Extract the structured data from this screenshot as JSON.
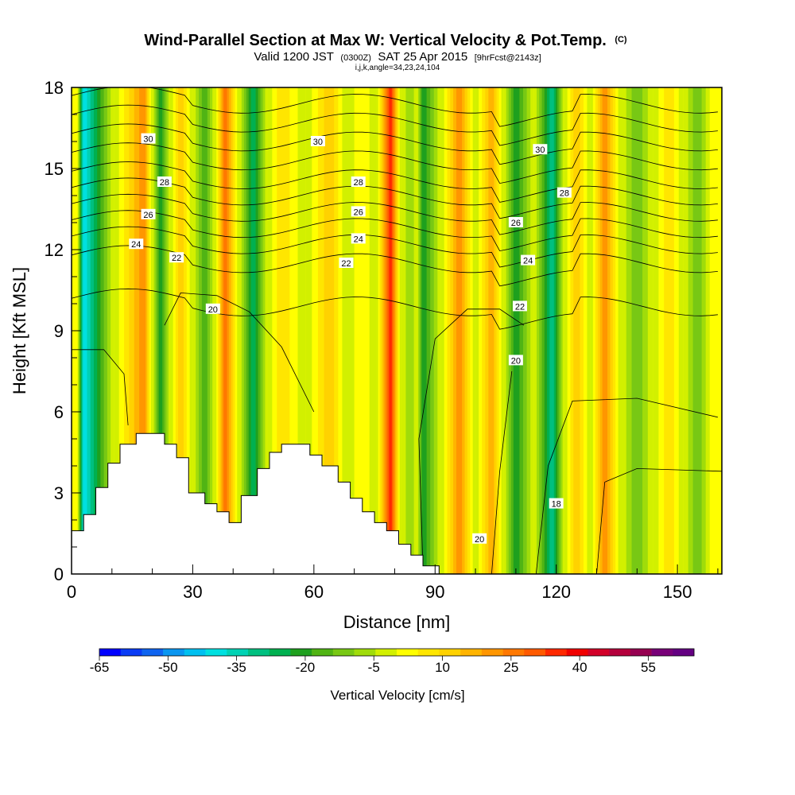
{
  "chart_data": {
    "type": "heatmap",
    "title": "Wind-Parallel Section at Max W: Vertical Velocity & Pot.Temp.",
    "title_mark": "(C)",
    "subtitle_valid": "Valid 1200 JST",
    "subtitle_utc": "(0300Z)",
    "subtitle_date": "SAT 25 Apr 2015",
    "subtitle_fcst": "[9hrFcst@2143z]",
    "subtitle_indices": "i,j,k,angle=34,23,24,104",
    "xlabel": "Distance [nm]",
    "ylabel": "Height [Kft MSL]",
    "xlim": [
      0,
      161
    ],
    "ylim": [
      0,
      18
    ],
    "x_ticks": [
      "0",
      "30",
      "60",
      "90",
      "120",
      "150"
    ],
    "x_tick_values": [
      0,
      30,
      60,
      90,
      120,
      150
    ],
    "y_ticks": [
      "0",
      "3",
      "6",
      "9",
      "12",
      "15",
      "18"
    ],
    "y_tick_values": [
      0,
      3,
      6,
      9,
      12,
      15,
      18
    ],
    "colorbar": {
      "title": "Vertical Velocity [cm/s]",
      "labels": [
        "-65",
        "-50",
        "-35",
        "-20",
        "-5",
        "10",
        "25",
        "40",
        "55"
      ],
      "label_values": [
        -65,
        -50,
        -35,
        -20,
        -5,
        10,
        25,
        40,
        55
      ],
      "min": -65,
      "max": 65,
      "step": 5,
      "colors": [
        "#0000ff",
        "#0a3cf5",
        "#0f64f0",
        "#0a96f0",
        "#00c0f0",
        "#00e0e0",
        "#00d2b4",
        "#00c080",
        "#00b050",
        "#1ea01e",
        "#50b414",
        "#78c814",
        "#a0dc0a",
        "#d2f000",
        "#ffff00",
        "#ffe600",
        "#ffd200",
        "#ffb400",
        "#ff9600",
        "#ff7800",
        "#ff5a00",
        "#ff2800",
        "#f00000",
        "#d20028",
        "#b4003c",
        "#960050",
        "#780078",
        "#640082"
      ]
    },
    "velocity_columns": [
      {
        "x": 3,
        "w": -40
      },
      {
        "x": 18,
        "w": 25
      },
      {
        "x": 22,
        "w": -20
      },
      {
        "x": 27,
        "w": 15
      },
      {
        "x": 33,
        "w": -15
      },
      {
        "x": 38,
        "w": 30
      },
      {
        "x": 45,
        "w": -25
      },
      {
        "x": 52,
        "w": 10
      },
      {
        "x": 64,
        "w": 15
      },
      {
        "x": 72,
        "w": 5
      },
      {
        "x": 79,
        "w": 40
      },
      {
        "x": 84,
        "w": -5
      },
      {
        "x": 87,
        "w": -20
      },
      {
        "x": 96,
        "w": 25
      },
      {
        "x": 104,
        "w": 20
      },
      {
        "x": 110,
        "w": -20
      },
      {
        "x": 119,
        "w": -30
      },
      {
        "x": 125,
        "w": 15
      },
      {
        "x": 132,
        "w": 25
      },
      {
        "x": 140,
        "w": -10
      },
      {
        "x": 148,
        "w": 10
      },
      {
        "x": 155,
        "w": -10
      }
    ],
    "theta_labels": [
      {
        "text": "30",
        "x": 19,
        "y": 16.1
      },
      {
        "text": "30",
        "x": 61,
        "y": 16.0
      },
      {
        "text": "30",
        "x": 116,
        "y": 15.7
      },
      {
        "text": "28",
        "x": 23,
        "y": 14.5
      },
      {
        "text": "28",
        "x": 71,
        "y": 14.5
      },
      {
        "text": "28",
        "x": 122,
        "y": 14.1
      },
      {
        "text": "26",
        "x": 19,
        "y": 13.3
      },
      {
        "text": "26",
        "x": 71,
        "y": 13.4
      },
      {
        "text": "26",
        "x": 110,
        "y": 13.0
      },
      {
        "text": "24",
        "x": 16,
        "y": 12.2
      },
      {
        "text": "24",
        "x": 71,
        "y": 12.4
      },
      {
        "text": "24",
        "x": 113,
        "y": 11.6
      },
      {
        "text": "22",
        "x": 26,
        "y": 11.7
      },
      {
        "text": "22",
        "x": 68,
        "y": 11.5
      },
      {
        "text": "22",
        "x": 111,
        "y": 9.9
      },
      {
        "text": "20",
        "x": 35,
        "y": 9.8
      },
      {
        "text": "20",
        "x": 110,
        "y": 7.9
      },
      {
        "text": "18",
        "x": 120,
        "y": 2.6
      },
      {
        "text": "20",
        "x": 101,
        "y": 1.3
      }
    ],
    "terrain_profile": [
      [
        0,
        1.6
      ],
      [
        3,
        1.6
      ],
      [
        3,
        2.2
      ],
      [
        6,
        2.2
      ],
      [
        6,
        3.2
      ],
      [
        9,
        3.2
      ],
      [
        9,
        4.1
      ],
      [
        12,
        4.1
      ],
      [
        12,
        4.8
      ],
      [
        16,
        4.8
      ],
      [
        16,
        5.2
      ],
      [
        23,
        5.2
      ],
      [
        23,
        4.8
      ],
      [
        26,
        4.8
      ],
      [
        26,
        4.3
      ],
      [
        29,
        4.3
      ],
      [
        29,
        3.0
      ],
      [
        33,
        3.0
      ],
      [
        33,
        2.6
      ],
      [
        36,
        2.6
      ],
      [
        36,
        2.3
      ],
      [
        39,
        2.3
      ],
      [
        39,
        1.9
      ],
      [
        42,
        1.9
      ],
      [
        42,
        2.9
      ],
      [
        46,
        2.9
      ],
      [
        46,
        3.9
      ],
      [
        49,
        3.9
      ],
      [
        49,
        4.5
      ],
      [
        52,
        4.5
      ],
      [
        52,
        4.8
      ],
      [
        59,
        4.8
      ],
      [
        59,
        4.4
      ],
      [
        62,
        4.4
      ],
      [
        62,
        4.0
      ],
      [
        66,
        4.0
      ],
      [
        66,
        3.4
      ],
      [
        69,
        3.4
      ],
      [
        69,
        2.8
      ],
      [
        72,
        2.8
      ],
      [
        72,
        2.3
      ],
      [
        75,
        2.3
      ],
      [
        75,
        1.9
      ],
      [
        78,
        1.9
      ],
      [
        78,
        1.6
      ],
      [
        81,
        1.6
      ],
      [
        81,
        1.1
      ],
      [
        84,
        1.1
      ],
      [
        84,
        0.7
      ],
      [
        87,
        0.7
      ],
      [
        87,
        0.3
      ],
      [
        91,
        0.3
      ],
      [
        91,
        0
      ],
      [
        0,
        0
      ]
    ]
  }
}
